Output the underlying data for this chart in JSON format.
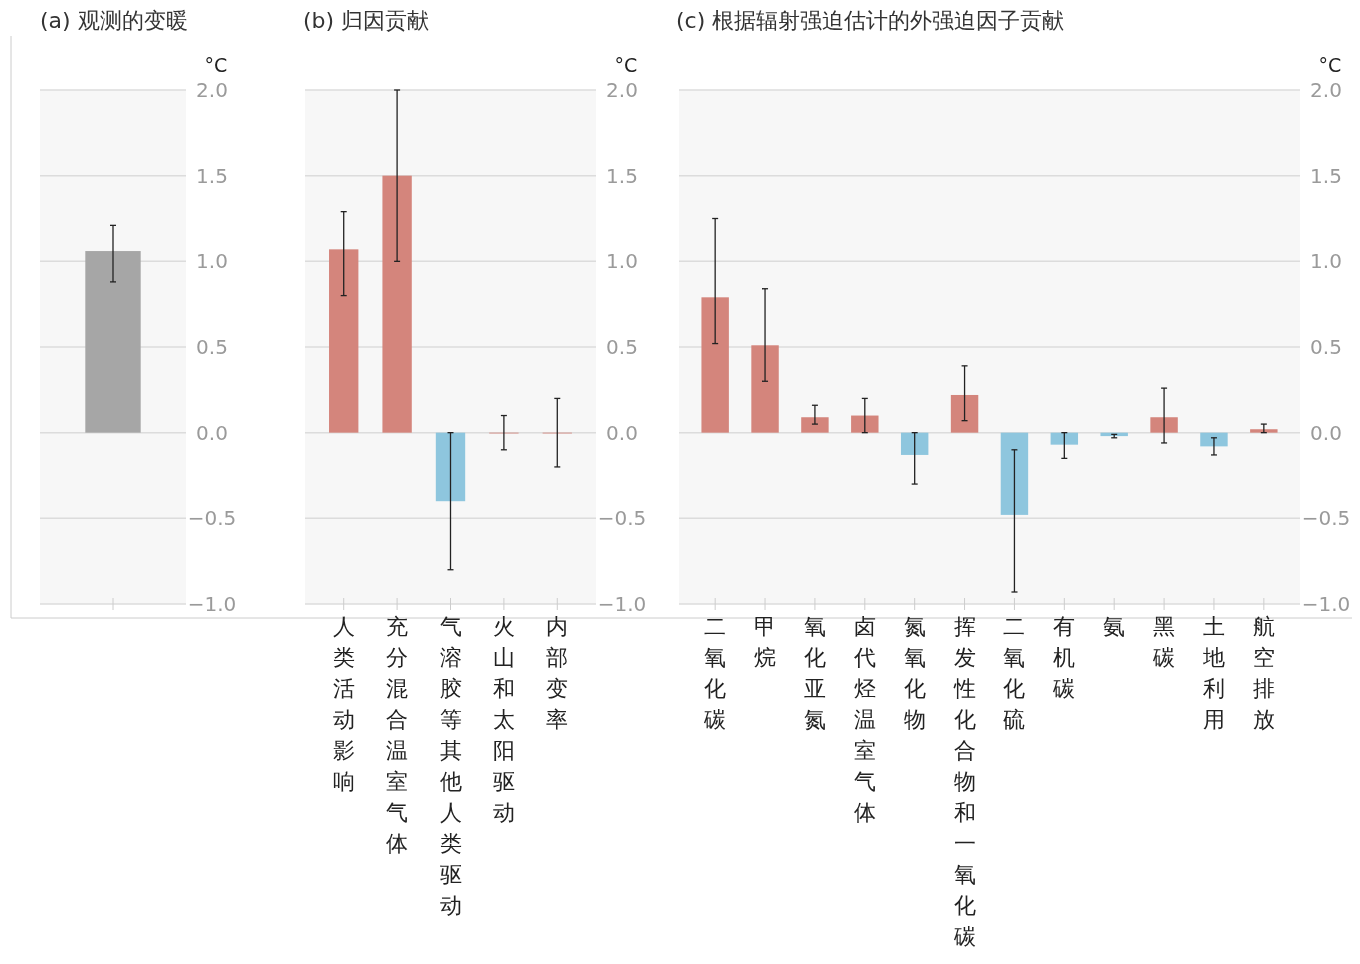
{
  "chart_data": [
    {
      "type": "bar",
      "title": "(a) 观测的变暖",
      "ylabel": "°C",
      "categories": [
        null
      ],
      "values": [
        1.06
      ],
      "colors": [
        "#a6a6a6"
      ],
      "errors": [
        [
          0.88,
          1.21
        ]
      ],
      "ylim": [
        -1.0,
        2.0
      ],
      "yticks": [
        {
          "value": -1.0,
          "label": "−1.0"
        },
        {
          "value": -0.5,
          "label": "−0.5"
        },
        {
          "value": 0,
          "label": "0.0"
        },
        {
          "value": 0.5,
          "label": "0.5"
        },
        {
          "value": 1.0,
          "label": "1.0"
        },
        {
          "value": 1.5,
          "label": "1.5"
        },
        {
          "value": 2.0,
          "label": "2.0"
        }
      ],
      "grid": "y"
    },
    {
      "type": "bar",
      "title": "(b) 归因贡献",
      "ylabel": "°C",
      "categories": [
        "人类活动影响",
        "充分混合温室气体",
        "气溶胶等其他人类驱动",
        "火山和太阳驱动",
        "内部变率"
      ],
      "values": [
        1.07,
        1.5,
        -0.4,
        0,
        0
      ],
      "colors": [
        "#d4857c",
        "#d4857c",
        "#8ec6de",
        "#d4857c",
        "#d4857c"
      ],
      "errors": [
        [
          0.8,
          1.29
        ],
        [
          1.0,
          2.0
        ],
        [
          -0.8,
          0.0
        ],
        [
          -0.1,
          0.1
        ],
        [
          -0.2,
          0.2
        ]
      ],
      "ylim": [
        -1.0,
        2.0
      ],
      "yticks": [
        {
          "value": -1.0,
          "label": "−1.0"
        },
        {
          "value": -0.5,
          "label": "−0.5"
        },
        {
          "value": 0,
          "label": "0.0"
        },
        {
          "value": 0.5,
          "label": "0.5"
        },
        {
          "value": 1.0,
          "label": "1.0"
        },
        {
          "value": 1.5,
          "label": "1.5"
        },
        {
          "value": 2.0,
          "label": "2.0"
        }
      ],
      "grid": "y"
    },
    {
      "type": "bar",
      "title": "(c) 根据辐射强迫估计的外强迫因子贡献",
      "ylabel": "°C",
      "categories": [
        "二氧化碳",
        "甲烷",
        "氧化亚氮",
        "卤代烃温室气体",
        "氮氧化物",
        "挥发性化合物和一氧化碳",
        "二氧化硫",
        "有机碳",
        "氨",
        "黑碳",
        "土地利用",
        "航空排放"
      ],
      "values": [
        0.79,
        0.51,
        0.09,
        0.1,
        -0.13,
        0.22,
        -0.48,
        -0.07,
        -0.02,
        0.09,
        -0.08,
        0.02
      ],
      "colors": [
        "#d4857c",
        "#d4857c",
        "#d4857c",
        "#d4857c",
        "#8ec6de",
        "#d4857c",
        "#8ec6de",
        "#8ec6de",
        "#8ec6de",
        "#d4857c",
        "#8ec6de",
        "#d4857c"
      ],
      "errors": [
        [
          0.52,
          1.25
        ],
        [
          0.3,
          0.84
        ],
        [
          0.05,
          0.16
        ],
        [
          0.0,
          0.2
        ],
        [
          -0.3,
          0.0
        ],
        [
          0.07,
          0.39
        ],
        [
          -0.93,
          -0.1
        ],
        [
          -0.15,
          0.0
        ],
        [
          -0.03,
          -0.01
        ],
        [
          -0.06,
          0.26
        ],
        [
          -0.13,
          -0.03
        ],
        [
          0.0,
          0.05
        ]
      ],
      "ylim": [
        -1.0,
        2.0
      ],
      "yticks": [
        {
          "value": -1.0,
          "label": "−1.0"
        },
        {
          "value": -0.5,
          "label": "−0.5"
        },
        {
          "value": 0,
          "label": "0.0"
        },
        {
          "value": 0.5,
          "label": "0.5"
        },
        {
          "value": 1.0,
          "label": "1.0"
        },
        {
          "value": 1.5,
          "label": "1.5"
        },
        {
          "value": 2.0,
          "label": "2.0"
        }
      ],
      "grid": "y"
    }
  ]
}
